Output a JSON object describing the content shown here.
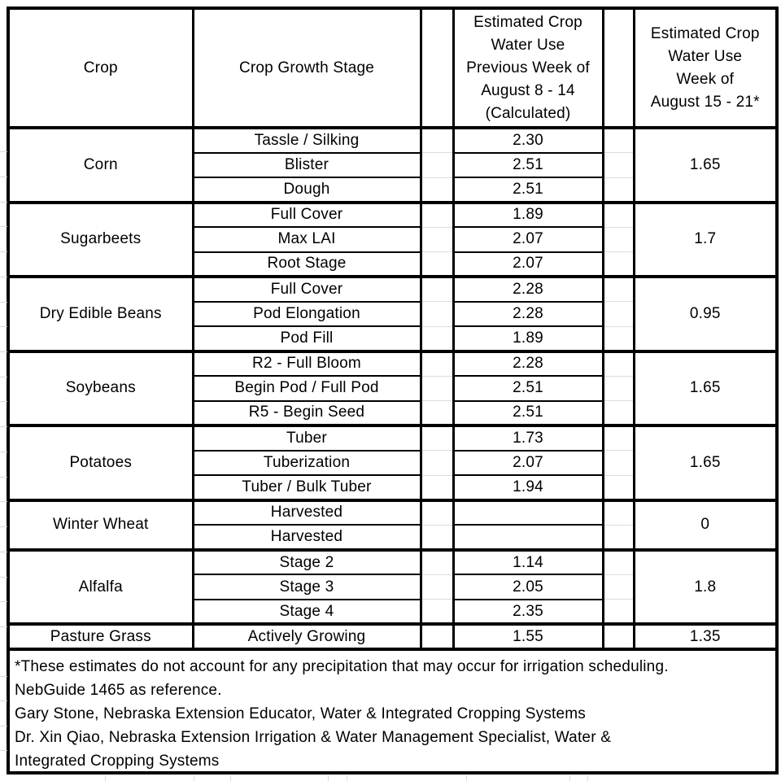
{
  "colors": {
    "border": "#000000",
    "text": "#000000",
    "gridline": "#d9d9d9",
    "background": "#ffffff"
  },
  "table": {
    "headers": {
      "crop": "Crop",
      "growth_stage": "Crop Growth Stage",
      "prev_week": "Estimated Crop\nWater Use\nPrevious Week of\nAugust 8 - 14\n(Calculated)",
      "week": "Estimated Crop\nWater Use\nWeek of\nAugust 15 - 21*"
    },
    "groups": [
      {
        "crop": "Corn",
        "rows": [
          {
            "stage": "Tassle / Silking",
            "prev": "2.30"
          },
          {
            "stage": "Blister",
            "prev": "2.51"
          },
          {
            "stage": "Dough",
            "prev": "2.51"
          }
        ],
        "week_estimate": "1.65"
      },
      {
        "crop": "Sugarbeets",
        "rows": [
          {
            "stage": "Full Cover",
            "prev": "1.89"
          },
          {
            "stage": "Max LAI",
            "prev": "2.07"
          },
          {
            "stage": "Root Stage",
            "prev": "2.07"
          }
        ],
        "week_estimate": "1.7"
      },
      {
        "crop": "Dry Edible Beans",
        "rows": [
          {
            "stage": "Full Cover",
            "prev": "2.28"
          },
          {
            "stage": "Pod Elongation",
            "prev": "2.28"
          },
          {
            "stage": "Pod Fill",
            "prev": "1.89"
          }
        ],
        "week_estimate": "0.95"
      },
      {
        "crop": "Soybeans",
        "rows": [
          {
            "stage": "R2 - Full Bloom",
            "prev": "2.28"
          },
          {
            "stage": "Begin Pod / Full Pod",
            "prev": "2.51"
          },
          {
            "stage": "R5 - Begin Seed",
            "prev": "2.51"
          }
        ],
        "week_estimate": "1.65"
      },
      {
        "crop": "Potatoes",
        "rows": [
          {
            "stage": "Tuber",
            "prev": "1.73"
          },
          {
            "stage": "Tuberization",
            "prev": "2.07"
          },
          {
            "stage": "Tuber / Bulk Tuber",
            "prev": "1.94"
          }
        ],
        "week_estimate": "1.65"
      },
      {
        "crop": "Winter Wheat",
        "rows": [
          {
            "stage": "Harvested",
            "prev": ""
          },
          {
            "stage": "Harvested",
            "prev": ""
          }
        ],
        "week_estimate": "0"
      },
      {
        "crop": "Alfalfa",
        "rows": [
          {
            "stage": "Stage 2",
            "prev": "1.14"
          },
          {
            "stage": "Stage 3",
            "prev": "2.05"
          },
          {
            "stage": "Stage 4",
            "prev": "2.35"
          }
        ],
        "week_estimate": "1.8"
      },
      {
        "crop": "Pasture Grass",
        "rows": [
          {
            "stage": "Actively Growing",
            "prev": "1.55"
          }
        ],
        "week_estimate": "1.35"
      }
    ]
  },
  "footnotes": [
    "*These estimates do not account for any precipitation that may occur for irrigation scheduling.",
    "NebGuide 1465 as reference.",
    "Gary Stone, Nebraska Extension Educator, Water & Integrated Cropping Systems",
    "Dr. Xin Qiao, Nebraska Extension Irrigation & Water Management Specialist, Water &",
    "Integrated Cropping Systems"
  ]
}
